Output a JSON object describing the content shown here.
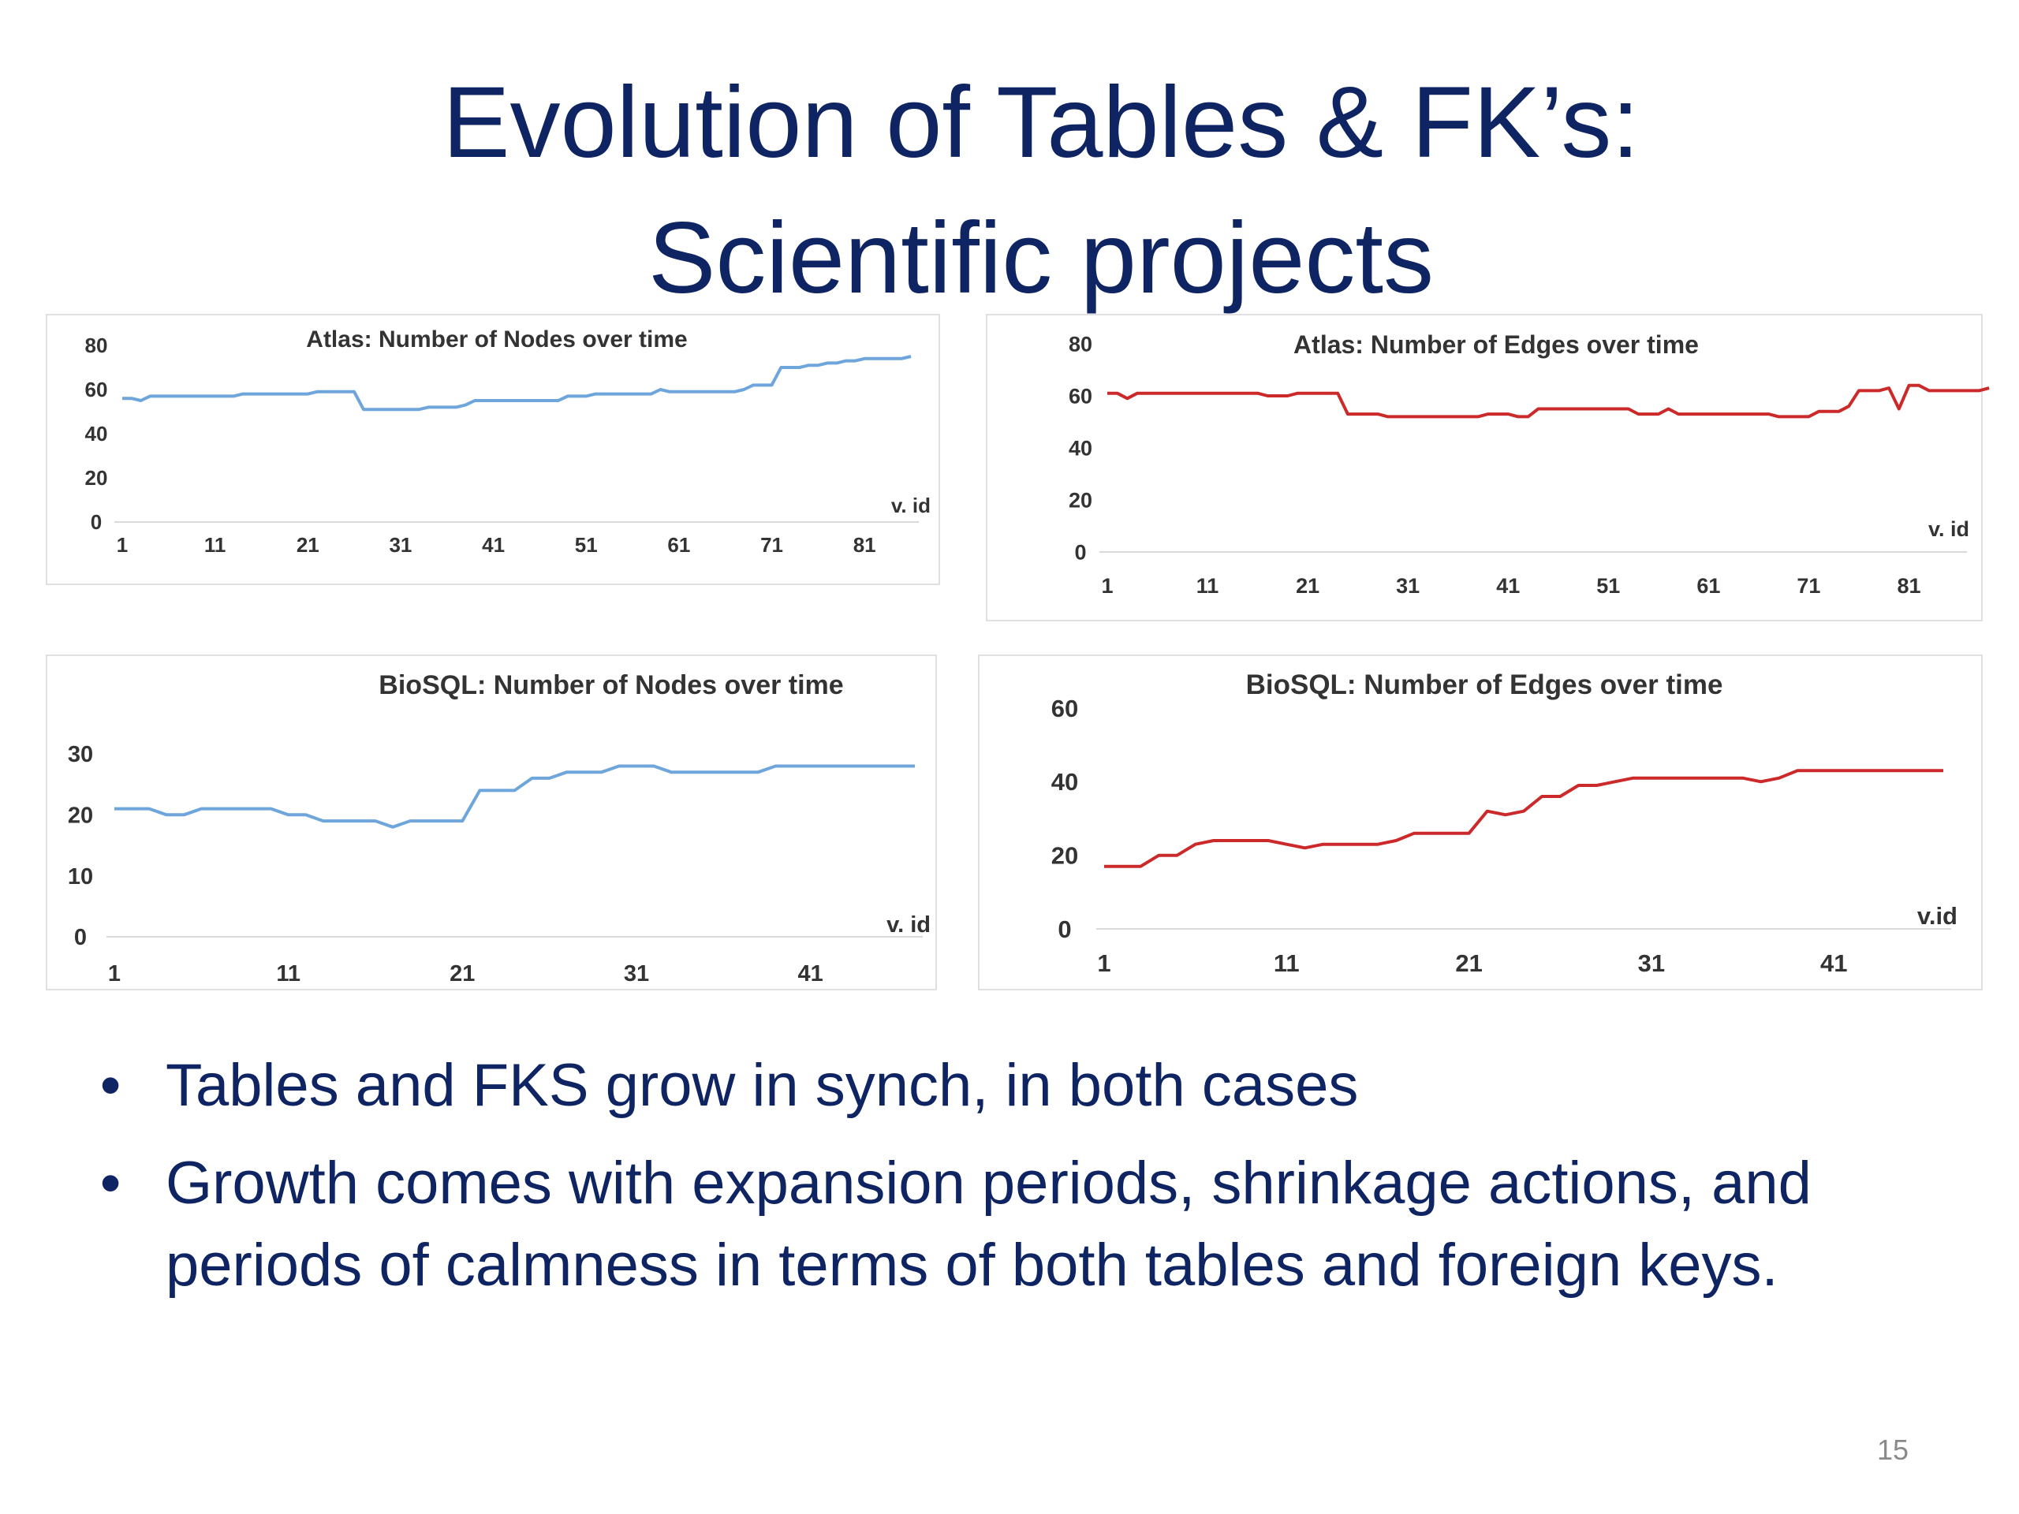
{
  "slide": {
    "title_line1": "Evolution of Tables & FK’s:",
    "title_line2": "Scientific projects",
    "bullets": [
      "Tables and FKS grow in synch, in both cases",
      "Growth comes with expansion periods, shrinkage actions,  and periods of calmness in terms of both tables and foreign keys."
    ],
    "page_number": "15"
  },
  "colors": {
    "title": "#0f2462",
    "nodes_series": "#6ea6dc",
    "edges_series": "#cc2a2a",
    "axis_text": "#333333"
  },
  "chart_data": [
    {
      "type": "line",
      "title": "Atlas: Number of Nodes over time",
      "xlabel": "v. id",
      "x_range": [
        1,
        86
      ],
      "x_ticks": [
        1,
        11,
        21,
        31,
        41,
        51,
        61,
        71,
        81
      ],
      "ylim": [
        0,
        80
      ],
      "y_ticks": [
        0,
        20,
        40,
        60,
        80
      ],
      "grid": false,
      "series": [
        {
          "color": "#6ea6dc",
          "points": [
            [
              1,
              56
            ],
            [
              2,
              56
            ],
            [
              3,
              55
            ],
            [
              4,
              57
            ],
            [
              13,
              57
            ],
            [
              14,
              58
            ],
            [
              21,
              58
            ],
            [
              22,
              59
            ],
            [
              26,
              59
            ],
            [
              27,
              51
            ],
            [
              33,
              51
            ],
            [
              34,
              52
            ],
            [
              37,
              52
            ],
            [
              38,
              53
            ],
            [
              39,
              55
            ],
            [
              48,
              55
            ],
            [
              49,
              57
            ],
            [
              51,
              57
            ],
            [
              52,
              58
            ],
            [
              58,
              58
            ],
            [
              59,
              60
            ],
            [
              60,
              59
            ],
            [
              67,
              59
            ],
            [
              68,
              60
            ],
            [
              69,
              62
            ],
            [
              71,
              62
            ],
            [
              72,
              70
            ],
            [
              74,
              70
            ],
            [
              75,
              71
            ],
            [
              76,
              71
            ],
            [
              77,
              72
            ],
            [
              78,
              72
            ],
            [
              79,
              73
            ],
            [
              80,
              73
            ],
            [
              81,
              74
            ],
            [
              85,
              74
            ],
            [
              86,
              75
            ]
          ]
        }
      ]
    },
    {
      "type": "line",
      "title": "Atlas: Number of Edges over time",
      "xlabel": "v. id",
      "x_range": [
        1,
        86
      ],
      "x_ticks": [
        1,
        11,
        21,
        31,
        41,
        51,
        61,
        71,
        81
      ],
      "ylim": [
        0,
        80
      ],
      "y_ticks": [
        0,
        20,
        40,
        60,
        80
      ],
      "grid": false,
      "series": [
        {
          "color": "#cc2a2a",
          "points": [
            [
              1,
              61
            ],
            [
              2,
              61
            ],
            [
              3,
              59
            ],
            [
              4,
              61
            ],
            [
              16,
              61
            ],
            [
              17,
              60
            ],
            [
              19,
              60
            ],
            [
              20,
              61
            ],
            [
              24,
              61
            ],
            [
              25,
              53
            ],
            [
              28,
              53
            ],
            [
              29,
              52
            ],
            [
              38,
              52
            ],
            [
              39,
              53
            ],
            [
              41,
              53
            ],
            [
              42,
              52
            ],
            [
              43,
              52
            ],
            [
              44,
              55
            ],
            [
              53,
              55
            ],
            [
              54,
              53
            ],
            [
              56,
              53
            ],
            [
              57,
              55
            ],
            [
              58,
              53
            ],
            [
              67,
              53
            ],
            [
              68,
              52
            ],
            [
              71,
              52
            ],
            [
              72,
              54
            ],
            [
              74,
              54
            ],
            [
              75,
              56
            ],
            [
              76,
              62
            ],
            [
              78,
              62
            ],
            [
              79,
              63
            ],
            [
              80,
              55
            ],
            [
              81,
              64
            ],
            [
              82,
              64
            ],
            [
              83,
              62
            ],
            [
              88,
              62
            ],
            [
              89,
              63
            ]
          ]
        }
      ]
    },
    {
      "type": "line",
      "title": "BioSQL: Number of Nodes over time",
      "xlabel": "v. id",
      "x_range": [
        1,
        47
      ],
      "x_ticks": [
        1,
        11,
        21,
        31,
        41
      ],
      "ylim": [
        0,
        30
      ],
      "y_ticks": [
        0,
        10,
        20,
        30
      ],
      "grid": false,
      "series": [
        {
          "color": "#6ea6dc",
          "points": [
            [
              1,
              21
            ],
            [
              3,
              21
            ],
            [
              4,
              20
            ],
            [
              5,
              20
            ],
            [
              6,
              21
            ],
            [
              10,
              21
            ],
            [
              11,
              20
            ],
            [
              12,
              20
            ],
            [
              13,
              19
            ],
            [
              16,
              19
            ],
            [
              17,
              18
            ],
            [
              18,
              19
            ],
            [
              21,
              19
            ],
            [
              22,
              24
            ],
            [
              24,
              24
            ],
            [
              25,
              26
            ],
            [
              26,
              26
            ],
            [
              27,
              27
            ],
            [
              29,
              27
            ],
            [
              30,
              28
            ],
            [
              32,
              28
            ],
            [
              33,
              27
            ],
            [
              38,
              27
            ],
            [
              39,
              28
            ],
            [
              47,
              28
            ]
          ]
        }
      ]
    },
    {
      "type": "line",
      "title": "BioSQL: Number of Edges over time",
      "xlabel": "v.id",
      "x_range": [
        1,
        47
      ],
      "x_ticks": [
        1,
        11,
        21,
        31,
        41
      ],
      "ylim": [
        0,
        60
      ],
      "y_ticks": [
        0,
        20,
        40,
        60
      ],
      "grid": false,
      "series": [
        {
          "color": "#cc2a2a",
          "points": [
            [
              1,
              17
            ],
            [
              3,
              17
            ],
            [
              4,
              20
            ],
            [
              5,
              20
            ],
            [
              6,
              23
            ],
            [
              7,
              24
            ],
            [
              10,
              24
            ],
            [
              11,
              23
            ],
            [
              12,
              22
            ],
            [
              13,
              23
            ],
            [
              16,
              23
            ],
            [
              17,
              24
            ],
            [
              18,
              26
            ],
            [
              21,
              26
            ],
            [
              22,
              32
            ],
            [
              23,
              31
            ],
            [
              24,
              32
            ],
            [
              25,
              36
            ],
            [
              26,
              36
            ],
            [
              27,
              39
            ],
            [
              28,
              39
            ],
            [
              29,
              40
            ],
            [
              30,
              41
            ],
            [
              36,
              41
            ],
            [
              37,
              40
            ],
            [
              38,
              41
            ],
            [
              39,
              43
            ],
            [
              47,
              43
            ]
          ]
        }
      ]
    }
  ]
}
